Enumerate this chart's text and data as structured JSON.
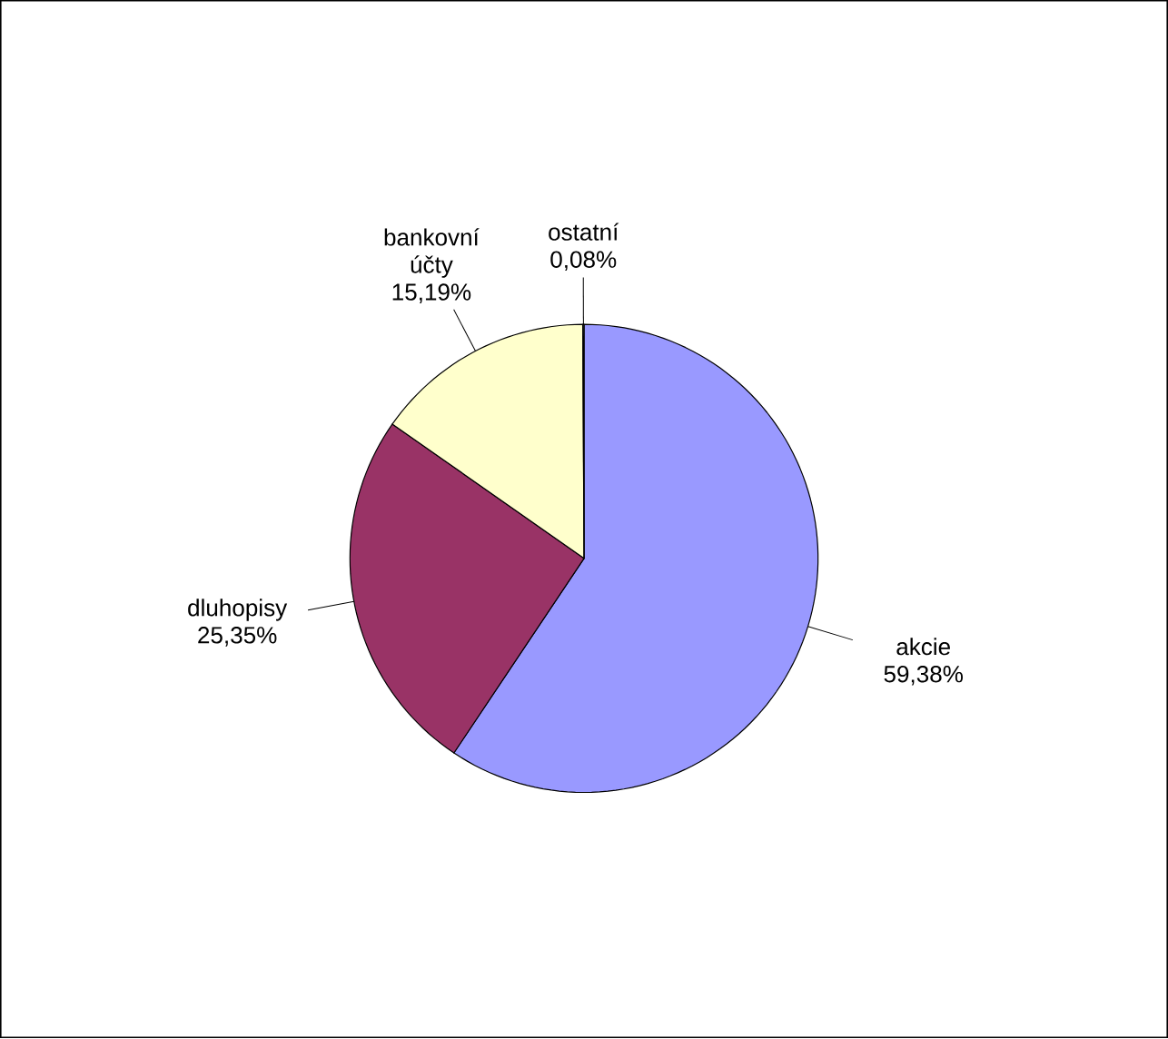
{
  "chart_data": {
    "type": "pie",
    "categories": [
      "akcie",
      "dluhopisy",
      "bankovní účty",
      "ostatní"
    ],
    "values": [
      59.38,
      25.35,
      15.19,
      0.08
    ],
    "value_labels": [
      "59,38%",
      "25,35%",
      "15,19%",
      "0,08%"
    ],
    "colors": [
      "#9999ff",
      "#993366",
      "#ffffcc",
      "#ccffff"
    ]
  }
}
